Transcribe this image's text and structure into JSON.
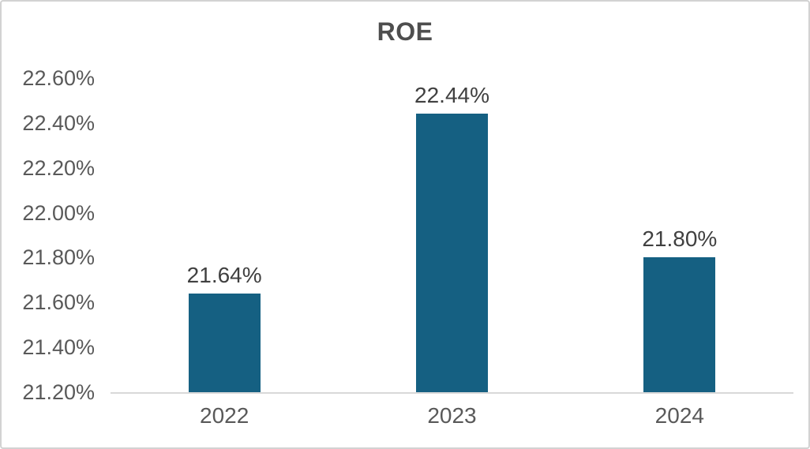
{
  "chart_data": {
    "type": "bar",
    "title": "ROE",
    "categories": [
      "2022",
      "2023",
      "2024"
    ],
    "values": [
      21.64,
      22.44,
      21.8
    ],
    "data_labels": [
      "21.64%",
      "22.44%",
      "21.80%"
    ],
    "y_ticks": [
      "22.60%",
      "22.40%",
      "22.20%",
      "22.00%",
      "21.80%",
      "21.60%",
      "21.40%",
      "21.20%"
    ],
    "y_tick_values": [
      22.6,
      22.4,
      22.2,
      22.0,
      21.8,
      21.6,
      21.4,
      21.2
    ],
    "ylim": [
      21.2,
      22.6
    ],
    "y_step": 0.2,
    "xlabel": "",
    "ylabel": "",
    "grid": false,
    "legend": "none",
    "colors": {
      "bar": "#156082",
      "axis_line": "#D9D9D9",
      "axis_text": "#595959",
      "data_label_text": "#404040",
      "title_text": "#4E4E4E",
      "border": "#D2D2D2",
      "background": "#FFFFFF"
    }
  }
}
